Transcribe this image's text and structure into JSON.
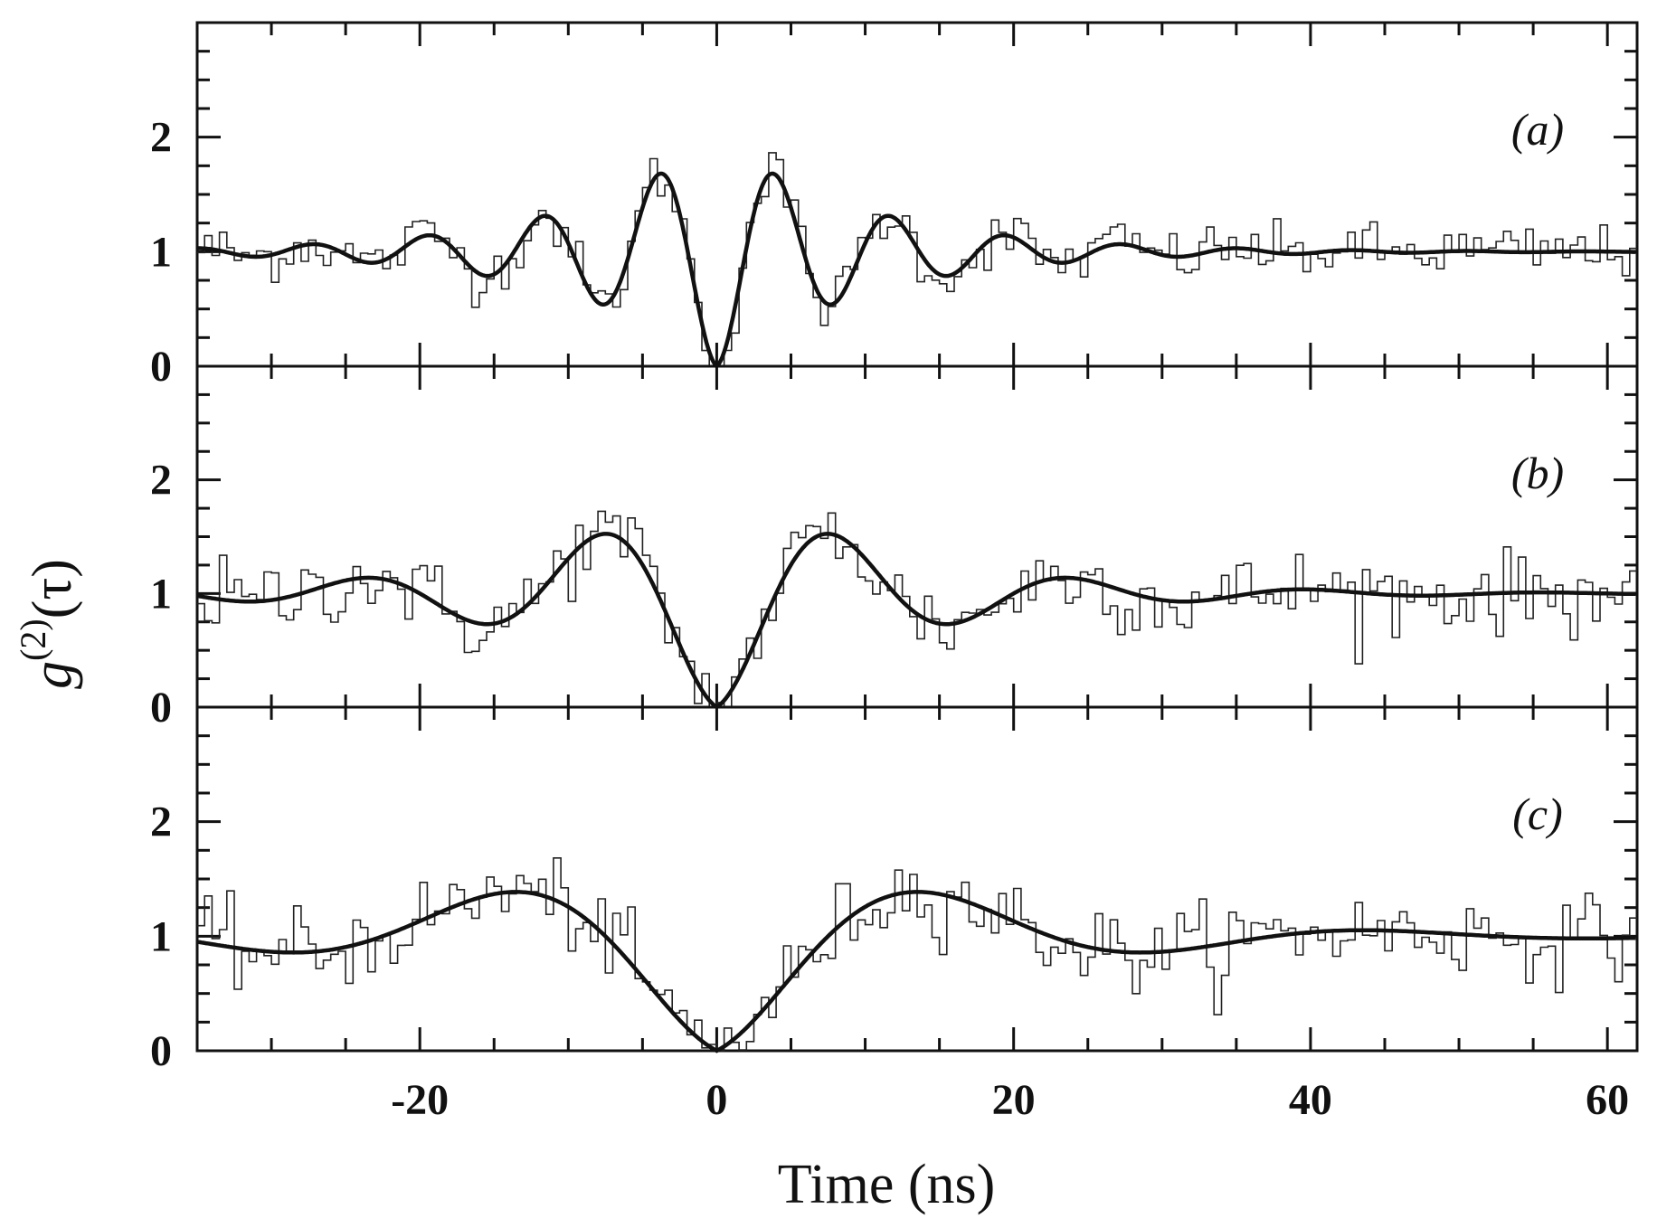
{
  "chart_data": {
    "type": "line",
    "xlabel": "Time (ns)",
    "ylabel_main": "g",
    "ylabel_sup": "(2)",
    "ylabel_arg": "(τ)",
    "xlim": [
      -35,
      62
    ],
    "x_ticks": [
      -20,
      0,
      20,
      40,
      60
    ],
    "x_tick_labels": [
      "-20",
      "0",
      "20",
      "40",
      "60"
    ],
    "ylim": [
      0,
      3.0
    ],
    "y_ticks": [
      0,
      1,
      2
    ],
    "y_tick_labels": [
      "0",
      "1",
      "2"
    ],
    "grid": false,
    "panels": [
      {
        "label": "(a)",
        "fit": {
          "type": "damped_cosine",
          "amplitude": 1.0,
          "period_ns": 7.8,
          "decay_ns": 10.0
        },
        "data_bins_ns": 0.5,
        "noise_level": 0.12
      },
      {
        "label": "(b)",
        "fit": {
          "type": "damped_cosine",
          "amplitude": 1.0,
          "period_ns": 16.0,
          "decay_ns": 12.0
        },
        "data_bins_ns": 0.5,
        "noise_level": 0.18
      },
      {
        "label": "(c)",
        "fit": {
          "type": "damped_cosine",
          "amplitude": 1.0,
          "period_ns": 30.0,
          "decay_ns": 15.0
        },
        "data_bins_ns": 0.5,
        "noise_level": 0.18
      }
    ]
  }
}
